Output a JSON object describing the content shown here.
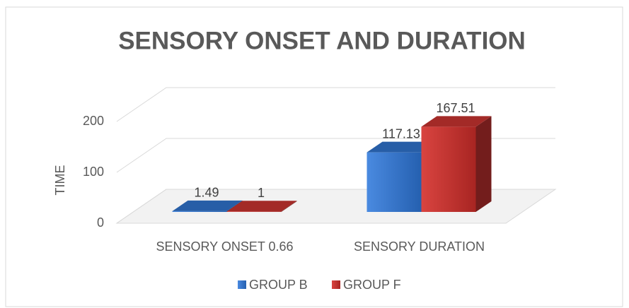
{
  "chart_data": {
    "type": "bar3d",
    "title": "SENSORY ONSET AND DURATION",
    "y_label": "TIME",
    "categories": [
      "SENSORY ONSET 0.66",
      "SENSORY DURATION"
    ],
    "series": [
      {
        "name": "GROUP B",
        "color": "#2e6fc4",
        "values": [
          1.49,
          117.13
        ]
      },
      {
        "name": "GROUP F",
        "color": "#c0312e",
        "values": [
          1,
          167.51
        ]
      }
    ],
    "ylim": [
      0,
      200
    ],
    "yticks": [
      0,
      100,
      200
    ],
    "grid": true,
    "legend": "bottom"
  }
}
